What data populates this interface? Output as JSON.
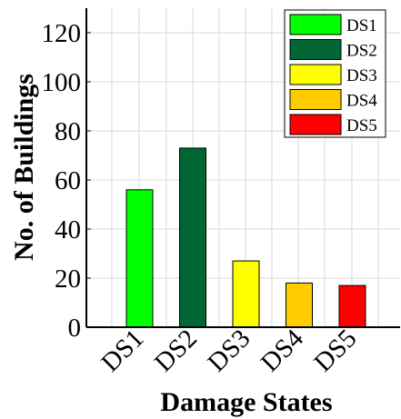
{
  "chart_data": {
    "type": "bar",
    "categories": [
      "DS1",
      "DS2",
      "DS3",
      "DS4",
      "DS5"
    ],
    "values": [
      56,
      73,
      27,
      18,
      17
    ],
    "colors": [
      "#00ff00",
      "#006633",
      "#ffff00",
      "#ffcc00",
      "#ff0000"
    ],
    "title": "",
    "xlabel": "Damage States",
    "ylabel": "No. of Buildings",
    "ylim": [
      0,
      130
    ],
    "yticks": [
      0,
      20,
      40,
      60,
      80,
      100,
      120
    ],
    "grid": true,
    "legend": {
      "placement": "top-right",
      "entries": [
        {
          "label": "DS1",
          "color": "#00ff00"
        },
        {
          "label": "DS2",
          "color": "#006633"
        },
        {
          "label": "DS3",
          "color": "#ffff00"
        },
        {
          "label": "DS4",
          "color": "#ffcc00"
        },
        {
          "label": "DS5",
          "color": "#ff0000"
        }
      ]
    }
  }
}
